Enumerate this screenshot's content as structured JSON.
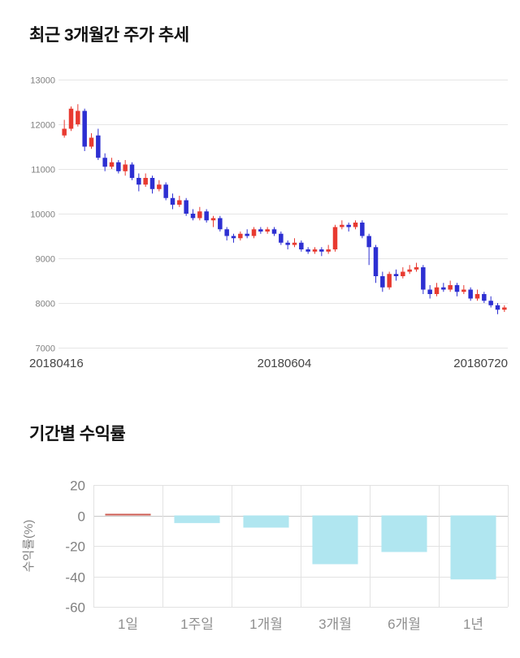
{
  "sections": {
    "price_trend": {
      "title": "최근 3개월간 주가 추세"
    },
    "period_returns": {
      "title": "기간별 수익률"
    }
  },
  "chart_data": [
    {
      "type": "candlestick",
      "title": "최근 3개월간 주가 추세",
      "ylim": [
        7000,
        13000
      ],
      "yticks": [
        13000,
        12000,
        11000,
        10000,
        9000,
        8000,
        7000
      ],
      "xtick_labels": [
        "20180416",
        "20180604",
        "20180720"
      ],
      "up_color": "#e83a30",
      "down_color": "#2d2fd2",
      "grid_color": "#e6e6e6",
      "axis_color": "#808080",
      "xaxis_color": "#444444",
      "candles": [
        [
          11750,
          12100,
          11700,
          11900
        ],
        [
          11900,
          12400,
          11850,
          12350
        ],
        [
          12000,
          12450,
          11950,
          12300
        ],
        [
          12300,
          12350,
          11400,
          11500
        ],
        [
          11500,
          11800,
          11450,
          11700
        ],
        [
          11750,
          11900,
          11200,
          11250
        ],
        [
          11250,
          11350,
          10950,
          11050
        ],
        [
          11050,
          11250,
          11000,
          11150
        ],
        [
          11150,
          11200,
          10900,
          10950
        ],
        [
          10950,
          11200,
          10850,
          11100
        ],
        [
          11100,
          11150,
          10750,
          10800
        ],
        [
          10800,
          10900,
          10500,
          10650
        ],
        [
          10650,
          10900,
          10600,
          10800
        ],
        [
          10800,
          10850,
          10450,
          10550
        ],
        [
          10550,
          10750,
          10500,
          10650
        ],
        [
          10650,
          10700,
          10300,
          10350
        ],
        [
          10350,
          10450,
          10100,
          10200
        ],
        [
          10200,
          10400,
          10150,
          10300
        ],
        [
          10300,
          10350,
          9950,
          10000
        ],
        [
          10000,
          10100,
          9850,
          9900
        ],
        [
          9900,
          10150,
          9850,
          10050
        ],
        [
          10050,
          10100,
          9800,
          9850
        ],
        [
          9850,
          9950,
          9700,
          9900
        ],
        [
          9900,
          9950,
          9600,
          9650
        ],
        [
          9650,
          9700,
          9400,
          9500
        ],
        [
          9500,
          9550,
          9350,
          9450
        ],
        [
          9450,
          9600,
          9400,
          9550
        ],
        [
          9550,
          9650,
          9450,
          9500
        ],
        [
          9500,
          9700,
          9450,
          9650
        ],
        [
          9650,
          9700,
          9550,
          9600
        ],
        [
          9600,
          9700,
          9550,
          9650
        ],
        [
          9650,
          9700,
          9500,
          9550
        ],
        [
          9550,
          9600,
          9300,
          9350
        ],
        [
          9350,
          9400,
          9200,
          9300
        ],
        [
          9300,
          9450,
          9250,
          9350
        ],
        [
          9350,
          9400,
          9150,
          9200
        ],
        [
          9200,
          9250,
          9100,
          9150
        ],
        [
          9150,
          9250,
          9100,
          9200
        ],
        [
          9200,
          9250,
          9050,
          9150
        ],
        [
          9150,
          9300,
          9100,
          9200
        ],
        [
          9200,
          9750,
          9150,
          9700
        ],
        [
          9700,
          9850,
          9650,
          9750
        ],
        [
          9750,
          9800,
          9600,
          9700
        ],
        [
          9700,
          9850,
          9650,
          9800
        ],
        [
          9800,
          9850,
          9450,
          9500
        ],
        [
          9500,
          9550,
          8850,
          9250
        ],
        [
          9250,
          9300,
          8450,
          8600
        ],
        [
          8600,
          8700,
          8250,
          8350
        ],
        [
          8350,
          8700,
          8300,
          8650
        ],
        [
          8650,
          8750,
          8500,
          8600
        ],
        [
          8600,
          8800,
          8550,
          8700
        ],
        [
          8700,
          8850,
          8650,
          8750
        ],
        [
          8750,
          8900,
          8700,
          8800
        ],
        [
          8800,
          8850,
          8200,
          8300
        ],
        [
          8300,
          8400,
          8100,
          8200
        ],
        [
          8200,
          8450,
          8150,
          8350
        ],
        [
          8350,
          8450,
          8250,
          8300
        ],
        [
          8300,
          8500,
          8250,
          8400
        ],
        [
          8400,
          8450,
          8150,
          8250
        ],
        [
          8250,
          8400,
          8200,
          8300
        ],
        [
          8300,
          8350,
          8050,
          8100
        ],
        [
          8100,
          8300,
          8050,
          8200
        ],
        [
          8200,
          8250,
          8000,
          8050
        ],
        [
          8050,
          8150,
          7900,
          7950
        ],
        [
          7950,
          8000,
          7750,
          7850
        ],
        [
          7850,
          7950,
          7800,
          7900
        ]
      ]
    },
    {
      "type": "bar",
      "title": "기간별 수익률",
      "ylabel": "수익률(%)",
      "categories": [
        "1일",
        "1주일",
        "1개월",
        "3개월",
        "6개월",
        "1년"
      ],
      "values": [
        0.3,
        -5,
        -8,
        -32,
        -24,
        -42
      ],
      "bar_colors": [
        "#cc5a50",
        "#b0e6f0",
        "#b0e6f0",
        "#b0e6f0",
        "#b0e6f0",
        "#b0e6f0"
      ],
      "ylim": [
        -60,
        20
      ],
      "yticks": [
        20,
        0,
        -20,
        -40,
        -60
      ],
      "grid_color": "#e2e2e2",
      "zero_line_color": "#c8c8c8",
      "axis_color": "#808080",
      "category_color": "#8f8f8f"
    }
  ]
}
